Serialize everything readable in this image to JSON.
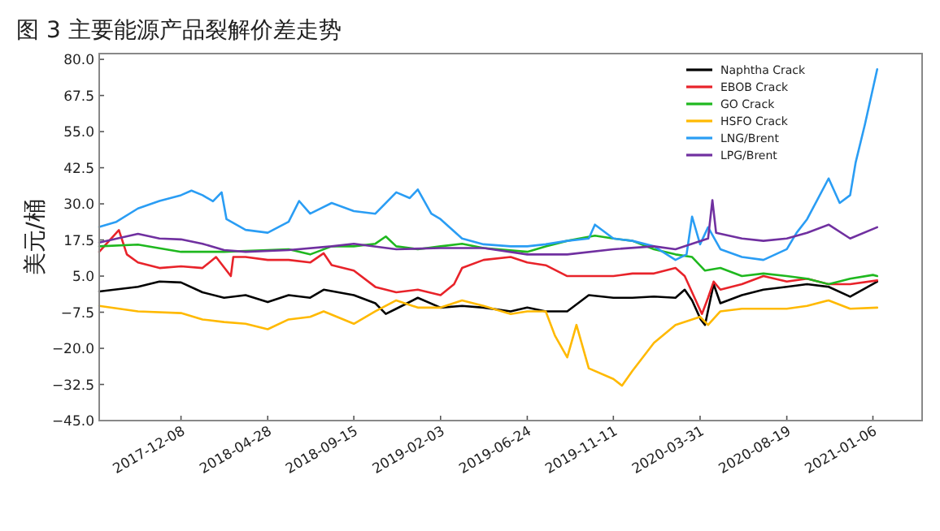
{
  "chart_data": {
    "type": "line",
    "title": "图 3 主要能源产品裂解价差走势",
    "ylabel": "美元/桶",
    "xlim": [
      "2017-07-28",
      "2021-03-27"
    ],
    "xticks": [
      "2017-12-08",
      "2018-04-28",
      "2018-09-15",
      "2019-02-03",
      "2019-06-24",
      "2019-11-11",
      "2020-03-31",
      "2020-08-19",
      "2021-01-06"
    ],
    "ylim": [
      -45,
      82
    ],
    "yticks": [
      {
        "value": -45,
        "label": "−45.0"
      },
      {
        "value": -32.5,
        "label": "−32.5"
      },
      {
        "value": -20,
        "label": "−20.0"
      },
      {
        "value": -7.5,
        "label": "−7.5"
      },
      {
        "value": 5,
        "label": "5.0"
      },
      {
        "value": 17.5,
        "label": "17.5"
      },
      {
        "value": 30,
        "label": "30.0"
      },
      {
        "value": 42.5,
        "label": "42.5"
      },
      {
        "value": 55,
        "label": "55.0"
      },
      {
        "value": 67.5,
        "label": "67.5"
      },
      {
        "value": 80,
        "label": "80.0"
      }
    ],
    "legend": "top right",
    "series": [
      {
        "name": "Naphtha Crack",
        "color": "#000000",
        "x": [
          "2017-07-28",
          "2017-09-29",
          "2017-11-03",
          "2017-12-08",
          "2018-01-12",
          "2018-02-16",
          "2018-03-23",
          "2018-04-28",
          "2018-06-01",
          "2018-07-06",
          "2018-07-28",
          "2018-09-15",
          "2018-10-20",
          "2018-11-06",
          "2018-11-23",
          "2018-12-28",
          "2019-02-03",
          "2019-03-10",
          "2019-04-14",
          "2019-05-28",
          "2019-06-24",
          "2019-07-24",
          "2019-08-28",
          "2019-10-02",
          "2019-11-11",
          "2019-12-12",
          "2020-01-16",
          "2020-02-20",
          "2020-03-06",
          "2020-03-18",
          "2020-04-01",
          "2020-04-08",
          "2020-04-22",
          "2020-05-03",
          "2020-06-07",
          "2020-07-12",
          "2020-08-19",
          "2020-09-21",
          "2020-10-26",
          "2020-11-30",
          "2021-01-13"
        ],
        "values": [
          -0.3,
          1.3,
          3.1,
          2.8,
          -0.6,
          -2.5,
          -1.6,
          -4,
          -1.6,
          -2.5,
          0.3,
          -1.6,
          -4.4,
          -8.1,
          -6.3,
          -2.5,
          -5.9,
          -5.3,
          -5.9,
          -7.2,
          -5.9,
          -7.2,
          -7.2,
          -1.6,
          -2.5,
          -2.5,
          -2.1,
          -2.5,
          0.3,
          -3.4,
          -10,
          -11.9,
          2.2,
          -4.4,
          -1.6,
          0.3,
          1.3,
          2.2,
          1.3,
          -2.1,
          3.1
        ]
      },
      {
        "name": "EBOB Crack",
        "color": "#e8232a",
        "x": [
          "2017-07-28",
          "2017-08-29",
          "2017-09-11",
          "2017-09-29",
          "2017-11-03",
          "2017-12-08",
          "2018-01-12",
          "2018-02-03",
          "2018-02-27",
          "2018-03-03",
          "2018-03-23",
          "2018-04-28",
          "2018-06-01",
          "2018-07-06",
          "2018-07-28",
          "2018-08-10",
          "2018-09-15",
          "2018-10-20",
          "2018-11-23",
          "2018-12-28",
          "2019-02-03",
          "2019-02-25",
          "2019-03-10",
          "2019-04-14",
          "2019-05-28",
          "2019-06-24",
          "2019-07-24",
          "2019-08-28",
          "2019-10-02",
          "2019-11-11",
          "2019-12-12",
          "2020-01-16",
          "2020-02-20",
          "2020-03-06",
          "2020-03-18",
          "2020-04-03",
          "2020-04-13",
          "2020-04-22",
          "2020-05-03",
          "2020-06-07",
          "2020-07-12",
          "2020-08-19",
          "2020-09-21",
          "2020-10-26",
          "2020-11-30",
          "2021-01-13"
        ],
        "values": [
          13.4,
          20.9,
          12.5,
          9.7,
          7.8,
          8.4,
          7.8,
          11.6,
          5,
          11.6,
          11.6,
          10.6,
          10.6,
          9.7,
          12.9,
          8.8,
          6.9,
          1.25,
          -0.6,
          0.3,
          -1.6,
          2.2,
          7.8,
          10.6,
          11.6,
          9.7,
          8.75,
          5,
          5,
          5,
          5.9,
          5.9,
          7.8,
          5,
          -0.6,
          -8.1,
          -2.5,
          3.1,
          0.3,
          2.2,
          5,
          3.1,
          4.1,
          2.2,
          2.2,
          3.5
        ]
      },
      {
        "name": "GO Crack",
        "color": "#1fb81f",
        "x": [
          "2017-07-28",
          "2017-09-29",
          "2017-12-08",
          "2018-02-16",
          "2018-04-28",
          "2018-06-01",
          "2018-07-06",
          "2018-08-10",
          "2018-09-15",
          "2018-10-20",
          "2018-11-06",
          "2018-11-23",
          "2018-12-28",
          "2019-02-03",
          "2019-03-10",
          "2019-04-14",
          "2019-06-24",
          "2019-07-24",
          "2019-08-28",
          "2019-10-12",
          "2019-11-11",
          "2019-12-12",
          "2020-01-16",
          "2020-02-20",
          "2020-03-18",
          "2020-04-08",
          "2020-05-03",
          "2020-06-07",
          "2020-07-12",
          "2020-08-19",
          "2020-09-21",
          "2020-10-26",
          "2020-11-30",
          "2021-01-06",
          "2021-01-13"
        ],
        "values": [
          15.3,
          15.9,
          13.4,
          13.4,
          14,
          14.3,
          12.5,
          15.3,
          15.3,
          16.2,
          18.7,
          15.3,
          14.3,
          15.3,
          16.2,
          14.7,
          13.4,
          15.3,
          17.2,
          19,
          18,
          17.2,
          14.3,
          12.5,
          11.6,
          6.9,
          7.8,
          5,
          5.9,
          5,
          4.1,
          2.2,
          4.1,
          5.4,
          5
        ]
      },
      {
        "name": "HSFO Crack",
        "color": "#ffb900",
        "x": [
          "2017-07-28",
          "2017-09-29",
          "2017-12-08",
          "2018-01-12",
          "2018-02-16",
          "2018-03-23",
          "2018-04-28",
          "2018-06-01",
          "2018-07-06",
          "2018-07-28",
          "2018-09-15",
          "2018-10-20",
          "2018-11-23",
          "2018-12-28",
          "2019-02-03",
          "2019-03-10",
          "2019-04-14",
          "2019-05-28",
          "2019-06-24",
          "2019-07-24",
          "2019-08-08",
          "2019-08-28",
          "2019-09-12",
          "2019-10-02",
          "2019-11-11",
          "2019-11-25",
          "2019-12-12",
          "2020-01-16",
          "2020-02-20",
          "2020-03-31",
          "2020-04-13",
          "2020-05-03",
          "2020-06-07",
          "2020-07-12",
          "2020-08-19",
          "2020-09-21",
          "2020-10-26",
          "2020-11-30",
          "2021-01-13"
        ],
        "values": [
          -5.3,
          -7.2,
          -7.8,
          -10,
          -10.9,
          -11.5,
          -13.4,
          -10,
          -9.1,
          -7.2,
          -11.5,
          -7.2,
          -3.4,
          -5.9,
          -5.9,
          -3.4,
          -5.3,
          -8.1,
          -7.2,
          -7.2,
          -15.6,
          -23.1,
          -11.9,
          -26.9,
          -30.6,
          -32.9,
          -27.8,
          -18.1,
          -11.9,
          -9.1,
          -11.9,
          -7.2,
          -6.3,
          -6.3,
          -6.3,
          -5.3,
          -3.4,
          -6.3,
          -5.9
        ]
      },
      {
        "name": "LNG/Brent",
        "color": "#2a9df4",
        "x": [
          "2017-07-28",
          "2017-08-25",
          "2017-09-29",
          "2017-11-03",
          "2017-12-08",
          "2017-12-25",
          "2018-01-12",
          "2018-01-29",
          "2018-02-12",
          "2018-02-20",
          "2018-03-23",
          "2018-04-28",
          "2018-06-01",
          "2018-06-18",
          "2018-07-06",
          "2018-08-10",
          "2018-09-15",
          "2018-10-20",
          "2018-11-23",
          "2018-12-15",
          "2018-12-28",
          "2019-01-19",
          "2019-02-03",
          "2019-03-10",
          "2019-04-14",
          "2019-05-28",
          "2019-06-24",
          "2019-07-24",
          "2019-08-28",
          "2019-10-02",
          "2019-10-12",
          "2019-11-11",
          "2019-12-12",
          "2020-01-16",
          "2020-02-20",
          "2020-03-09",
          "2020-03-18",
          "2020-03-31",
          "2020-04-13",
          "2020-05-03",
          "2020-06-07",
          "2020-07-12",
          "2020-08-19",
          "2020-09-04",
          "2020-09-21",
          "2020-10-26",
          "2020-11-13",
          "2020-11-30",
          "2020-12-09",
          "2020-12-24",
          "2021-01-13"
        ],
        "values": [
          22,
          23.8,
          28.4,
          31,
          33,
          34.6,
          33,
          30.9,
          34,
          24.7,
          21,
          20,
          23.8,
          31,
          26.6,
          30.3,
          27.5,
          26.6,
          34,
          32,
          35,
          26.6,
          24.7,
          18,
          16,
          15.3,
          15.3,
          16,
          17.2,
          18,
          22.8,
          18,
          17.2,
          15.3,
          10.6,
          12.5,
          25.6,
          16,
          21.9,
          14.3,
          11.6,
          10.6,
          14.3,
          20,
          24.7,
          38.8,
          30.3,
          33,
          44.4,
          57.5,
          76.6
        ]
      },
      {
        "name": "LPG/Brent",
        "color": "#7030a0",
        "x": [
          "2017-07-28",
          "2017-09-29",
          "2017-11-03",
          "2017-12-08",
          "2018-01-12",
          "2018-02-16",
          "2018-03-23",
          "2018-06-01",
          "2018-08-10",
          "2018-09-15",
          "2018-11-23",
          "2019-02-03",
          "2019-04-14",
          "2019-06-24",
          "2019-08-28",
          "2019-11-11",
          "2020-01-16",
          "2020-02-20",
          "2020-03-18",
          "2020-04-13",
          "2020-04-20",
          "2020-04-26",
          "2020-06-07",
          "2020-07-12",
          "2020-08-19",
          "2020-09-21",
          "2020-10-26",
          "2020-11-30",
          "2021-01-13"
        ],
        "values": [
          16.6,
          19.6,
          18,
          17.7,
          16.2,
          14,
          13.4,
          14,
          15.3,
          16.2,
          14.3,
          14.7,
          14.7,
          12.5,
          12.5,
          14.3,
          15.3,
          14.3,
          16.2,
          18,
          31.3,
          20,
          18,
          17.2,
          18,
          20,
          22.8,
          18,
          21.9
        ]
      }
    ]
  }
}
